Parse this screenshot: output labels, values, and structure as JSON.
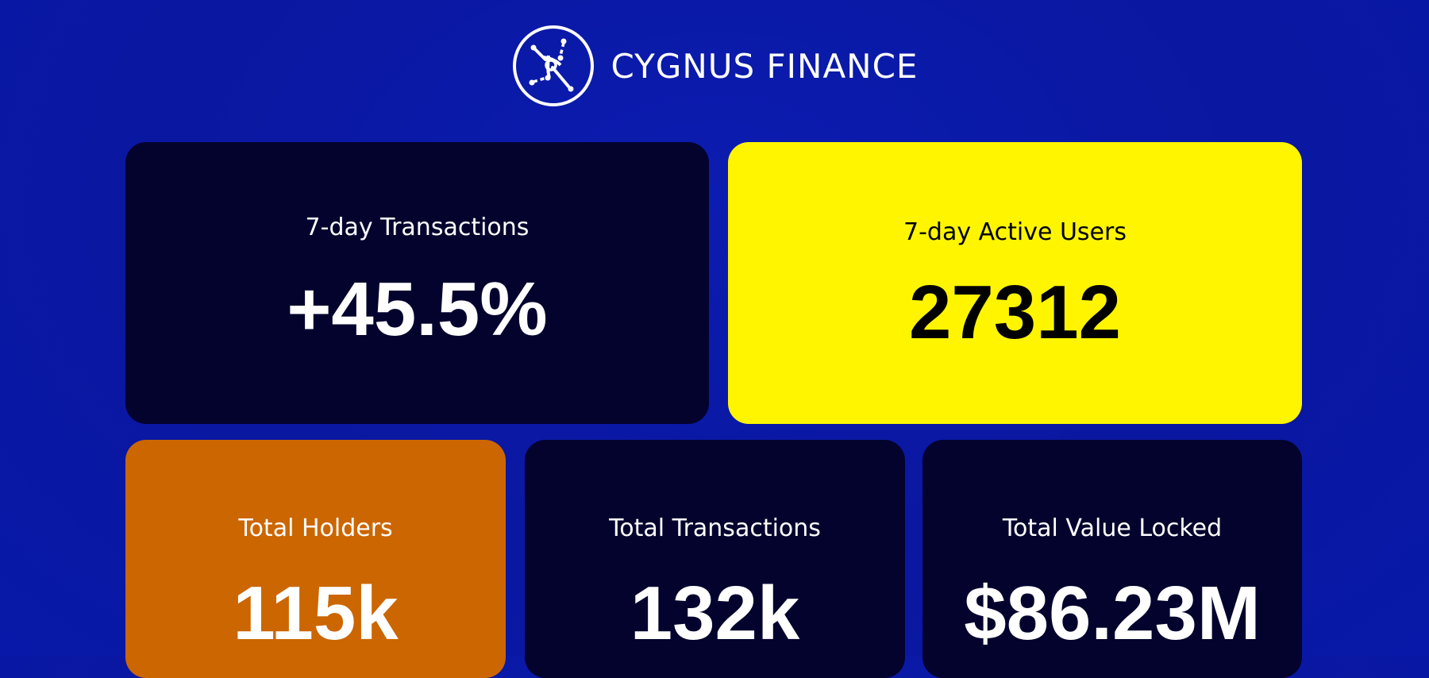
{
  "header": {
    "brand": "CYGNUS FINANCE",
    "logo_icon": "constellation-icon"
  },
  "colors": {
    "background": "#0a17a0",
    "card_dark": "#03032e",
    "card_yellow": "#fff500",
    "card_orange": "#cc6600"
  },
  "stats": [
    {
      "label": "7-day Transactions",
      "value": "+45.5%"
    },
    {
      "label": "7-day Active Users",
      "value": "27312"
    },
    {
      "label": "Total Holders",
      "value": "115k"
    },
    {
      "label": "Total Transactions",
      "value": "132k"
    },
    {
      "label": "Total Value Locked",
      "value": "$86.23M"
    }
  ]
}
